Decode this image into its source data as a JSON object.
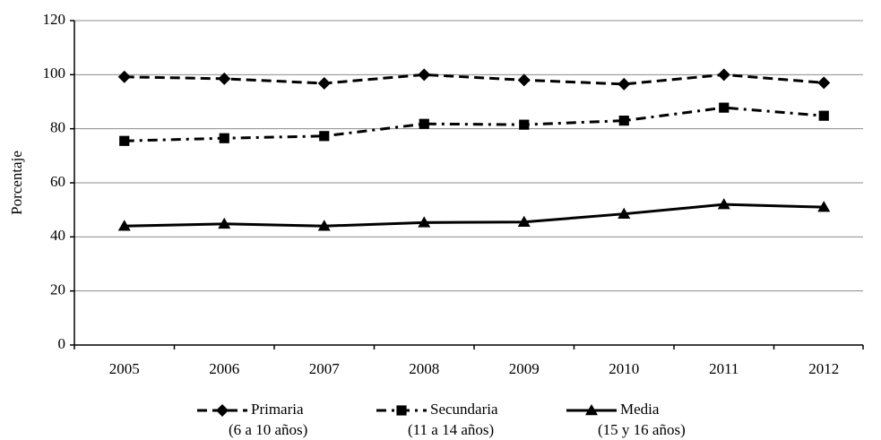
{
  "chart_data": {
    "type": "line",
    "ylabel": "Porcentaje",
    "categories": [
      "2005",
      "2006",
      "2007",
      "2008",
      "2009",
      "2010",
      "2011",
      "2012"
    ],
    "series": [
      {
        "name": "Primaria",
        "note": "(6 a 10 años)",
        "color": "#000000",
        "line_style": "dashed",
        "marker": "diamond",
        "values": [
          99.2,
          98.5,
          96.8,
          100,
          98,
          96.5,
          100,
          97
        ]
      },
      {
        "name": "Secundaria",
        "note": "(11 a 14 años)",
        "color": "#000000",
        "line_style": "dashdot",
        "marker": "square",
        "values": [
          75.5,
          76.5,
          77.3,
          81.8,
          81.5,
          83,
          87.8,
          84.8
        ]
      },
      {
        "name": "Media",
        "note": "(15 y 16 años)",
        "color": "#000000",
        "line_style": "solid",
        "marker": "triangle",
        "values": [
          44,
          44.8,
          44,
          45.3,
          45.5,
          48.5,
          52,
          51
        ]
      }
    ],
    "ylim": [
      0,
      120
    ],
    "yticks": [
      0,
      20,
      40,
      60,
      80,
      100,
      120
    ],
    "grid": true,
    "legend": "bottom"
  }
}
